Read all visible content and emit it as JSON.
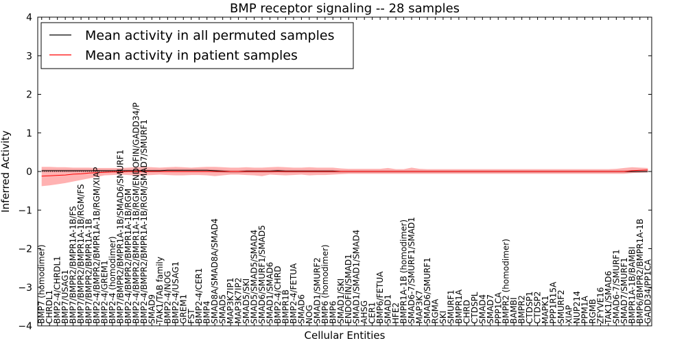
{
  "chart_data": {
    "type": "line",
    "title": "BMP receptor signaling -- 28 samples",
    "xlabel": "Cellular Entities",
    "ylabel": "Inferred Activity",
    "ylim": [
      -4,
      4
    ],
    "yticks": [
      "4",
      "3",
      "2",
      "1",
      "0",
      "−1",
      "−2",
      "−3",
      "−4"
    ],
    "legend": {
      "position": "top-left"
    },
    "categories": [
      "BMP7 (homodimer)",
      "CHRDL1",
      "BMP2-4/CHRDL1",
      "BMP7/USAG1",
      "BMP7/BMPR2/BMPR1A-1B/FS",
      "BMP7/BMPR2/BMPR1A-1B/RGM/FS",
      "BMP7/BMPR2/BMPR1A-1B",
      "BMP2-4/BMPR2/BMPR1A-1B/RGM/XIAP",
      "BMP2-4/GREM1",
      "BMP2-4 (homodimer)",
      "BMP7/BMPR2/BMPR1A-1B/SMAD6/SMURF1",
      "BMP2-4/BMPR2/BMPR1A-1B/RGM",
      "BMP2-4/BMPR2/BMPR1A-1B/RGM/ENDOFIN/GADD34/P",
      "BMP2-4/BMPR2/BMPR1A-1B/RGM/SMAD7/SMURF1",
      "SMAD9",
      "TAK1/TAB family",
      "BMP2-4/NOG",
      "BMP2-4/USAG1",
      "GREM1",
      "FST",
      "BMP2-4/CER1",
      "BMP4",
      "SMAD8A/SMAD8A/SMAD4",
      "SMAD5",
      "MAP3K7IP1",
      "MAP3K7IP2",
      "SMAD5/SKI",
      "SMAD5/SMAD5/SMAD4",
      "SMAD6/SMURF1/SMAD5",
      "SMAD1/SMAD6",
      "BMP2-4/CHRD",
      "BMPR1B",
      "BMP2-4/FETUA",
      "SMAD6",
      "NOG",
      "SMAD1/SMURF2",
      "BMP6 (homodimer)",
      "BMP6",
      "SMAD1/SKI",
      "ENDOFIN/SMAD1",
      "SMAD1/SMAD1/SMAD4",
      "AHSG",
      "CER1",
      "BMP6/FETUA",
      "SMAD1",
      "HFE2",
      "BMPR1A-1B (homodimer)",
      "SMAD6-7/SMURF1/SMAD1",
      "MAP3K7",
      "SMAD6/SMURF1",
      "RGMA",
      "SKI",
      "SMURF1",
      "BMPR1A",
      "CHRD",
      "CTDSPL",
      "SMAD4",
      "SMAD7",
      "PPP1CA",
      "BMPR2 (homodimer)",
      "BAMBI",
      "BMPR2",
      "CTDSP1",
      "CTDSP2",
      "MAPK1",
      "PPP1R15A",
      "SMURF2",
      "XIAP",
      "NUP214",
      "PPM1A",
      "RGMB",
      "ZFYVE16",
      "TAK1/SMAD6",
      "SMAD6-7/SMURF1",
      "SMAD7/SMURF1",
      "BMPR1A-1B/BAMBI",
      "BMP6/BMPR2/BMPR1A-1B",
      "GADD34/PP1CA"
    ],
    "series": [
      {
        "name": "Mean activity in all permuted samples",
        "color": "#000000",
        "values": [
          0.02,
          0.02,
          0.02,
          0.02,
          0.02,
          0.02,
          0.02,
          0.02,
          0.02,
          0.02,
          0.02,
          0.02,
          0.02,
          0.02,
          0.02,
          0.02,
          0.03,
          0.03,
          0.03,
          0.03,
          0.03,
          0.03,
          0.02,
          0.01,
          0.0,
          0.0,
          0.01,
          0.01,
          0.01,
          0.01,
          0.02,
          0.01,
          0.01,
          0.01,
          0.01,
          0.01,
          0.01,
          0.01,
          0.0,
          0.0,
          0.0,
          0.0,
          0.0,
          0.0,
          0.0,
          0.0,
          0.0,
          0.0,
          0.0,
          0.0,
          0.0,
          0.0,
          0.0,
          0.0,
          0.0,
          0.0,
          0.0,
          0.0,
          0.0,
          0.0,
          0.0,
          0.0,
          0.0,
          0.0,
          0.0,
          0.0,
          0.0,
          0.0,
          0.0,
          0.0,
          0.0,
          0.0,
          0.0,
          0.0,
          0.0,
          0.0,
          0.0,
          0.0
        ],
        "band_low": [
          -0.01,
          -0.01,
          -0.01,
          -0.01,
          -0.01,
          -0.01,
          -0.01,
          -0.01,
          -0.01,
          -0.01,
          -0.01,
          -0.01,
          -0.01,
          -0.01,
          -0.01,
          -0.01,
          -0.01,
          -0.01,
          -0.01,
          -0.01,
          -0.01,
          -0.01,
          -0.02,
          -0.03,
          -0.04,
          -0.04,
          -0.03,
          -0.03,
          -0.03,
          -0.03,
          -0.02,
          -0.03,
          -0.03,
          -0.03,
          -0.03,
          -0.03,
          -0.03,
          -0.03,
          -0.03,
          -0.03,
          -0.03,
          -0.03,
          -0.03,
          -0.03,
          -0.03,
          -0.03,
          -0.03,
          -0.03,
          -0.03,
          -0.03,
          -0.03,
          -0.03,
          -0.03,
          -0.03,
          -0.03,
          -0.03,
          -0.03,
          -0.03,
          -0.03,
          -0.03,
          -0.03,
          -0.03,
          -0.03,
          -0.03,
          -0.03,
          -0.03,
          -0.03,
          -0.03,
          -0.03,
          -0.03,
          -0.03,
          -0.03,
          -0.03,
          -0.03,
          -0.03,
          -0.03,
          -0.03,
          -0.03
        ],
        "band_high": [
          0.05,
          0.05,
          0.05,
          0.05,
          0.05,
          0.05,
          0.05,
          0.05,
          0.05,
          0.05,
          0.05,
          0.05,
          0.05,
          0.05,
          0.05,
          0.05,
          0.06,
          0.06,
          0.06,
          0.06,
          0.06,
          0.06,
          0.05,
          0.04,
          0.03,
          0.03,
          0.04,
          0.04,
          0.04,
          0.04,
          0.05,
          0.04,
          0.04,
          0.04,
          0.04,
          0.04,
          0.04,
          0.04,
          0.03,
          0.03,
          0.03,
          0.03,
          0.03,
          0.03,
          0.03,
          0.03,
          0.03,
          0.03,
          0.03,
          0.03,
          0.03,
          0.03,
          0.03,
          0.03,
          0.03,
          0.03,
          0.03,
          0.03,
          0.03,
          0.03,
          0.03,
          0.03,
          0.03,
          0.03,
          0.03,
          0.03,
          0.03,
          0.03,
          0.03,
          0.03,
          0.03,
          0.03,
          0.03,
          0.03,
          0.03,
          0.03,
          0.03,
          0.03
        ]
      },
      {
        "name": "Mean activity in patient samples",
        "color": "#ff0000",
        "values": [
          -0.12,
          -0.11,
          -0.1,
          -0.09,
          -0.07,
          -0.06,
          -0.04,
          -0.03,
          -0.02,
          -0.01,
          -0.01,
          0.0,
          0.0,
          0.0,
          0.0,
          0.0,
          0.0,
          0.0,
          0.0,
          0.0,
          0.0,
          0.0,
          0.0,
          0.0,
          0.0,
          0.0,
          0.0,
          0.0,
          0.0,
          0.0,
          0.0,
          0.0,
          0.0,
          0.0,
          0.0,
          0.0,
          0.0,
          0.0,
          0.0,
          0.0,
          0.0,
          0.0,
          0.0,
          0.0,
          0.0,
          0.0,
          0.0,
          0.0,
          0.0,
          0.0,
          0.0,
          0.0,
          0.0,
          0.0,
          0.0,
          0.0,
          0.0,
          0.0,
          0.0,
          0.0,
          0.0,
          0.0,
          0.0,
          0.0,
          0.0,
          0.0,
          0.0,
          0.0,
          0.0,
          0.0,
          0.0,
          0.0,
          0.0,
          0.0,
          0.0,
          0.02,
          0.03,
          0.04
        ],
        "band_low": [
          -0.38,
          -0.36,
          -0.33,
          -0.3,
          -0.26,
          -0.22,
          -0.18,
          -0.14,
          -0.1,
          -0.09,
          -0.08,
          -0.09,
          -0.1,
          -0.1,
          -0.09,
          -0.08,
          -0.09,
          -0.1,
          -0.1,
          -0.09,
          -0.09,
          -0.1,
          -0.12,
          -0.1,
          -0.08,
          -0.08,
          -0.09,
          -0.1,
          -0.12,
          -0.08,
          -0.09,
          -0.1,
          -0.09,
          -0.08,
          -0.1,
          -0.09,
          -0.09,
          -0.08,
          -0.07,
          -0.06,
          -0.06,
          -0.06,
          -0.06,
          -0.06,
          -0.06,
          -0.06,
          -0.06,
          -0.06,
          -0.06,
          -0.06,
          -0.06,
          -0.06,
          -0.06,
          -0.06,
          -0.06,
          -0.06,
          -0.06,
          -0.06,
          -0.06,
          -0.06,
          -0.06,
          -0.06,
          -0.06,
          -0.06,
          -0.06,
          -0.06,
          -0.06,
          -0.06,
          -0.06,
          -0.06,
          -0.06,
          -0.06,
          -0.06,
          -0.06,
          -0.06,
          -0.04,
          -0.03,
          -0.02
        ],
        "band_high": [
          0.12,
          0.12,
          0.11,
          0.11,
          0.1,
          0.1,
          0.1,
          0.09,
          0.09,
          0.09,
          0.09,
          0.1,
          0.11,
          0.12,
          0.11,
          0.1,
          0.11,
          0.12,
          0.11,
          0.1,
          0.11,
          0.12,
          0.12,
          0.11,
          0.1,
          0.1,
          0.11,
          0.1,
          0.1,
          0.11,
          0.12,
          0.11,
          0.1,
          0.1,
          0.11,
          0.1,
          0.1,
          0.1,
          0.08,
          0.07,
          0.07,
          0.07,
          0.07,
          0.07,
          0.09,
          0.06,
          0.06,
          0.1,
          0.07,
          0.06,
          0.06,
          0.06,
          0.06,
          0.06,
          0.06,
          0.06,
          0.06,
          0.06,
          0.06,
          0.06,
          0.06,
          0.06,
          0.06,
          0.06,
          0.06,
          0.06,
          0.06,
          0.06,
          0.06,
          0.06,
          0.06,
          0.06,
          0.06,
          0.07,
          0.09,
          0.11,
          0.1,
          0.09
        ]
      }
    ]
  }
}
